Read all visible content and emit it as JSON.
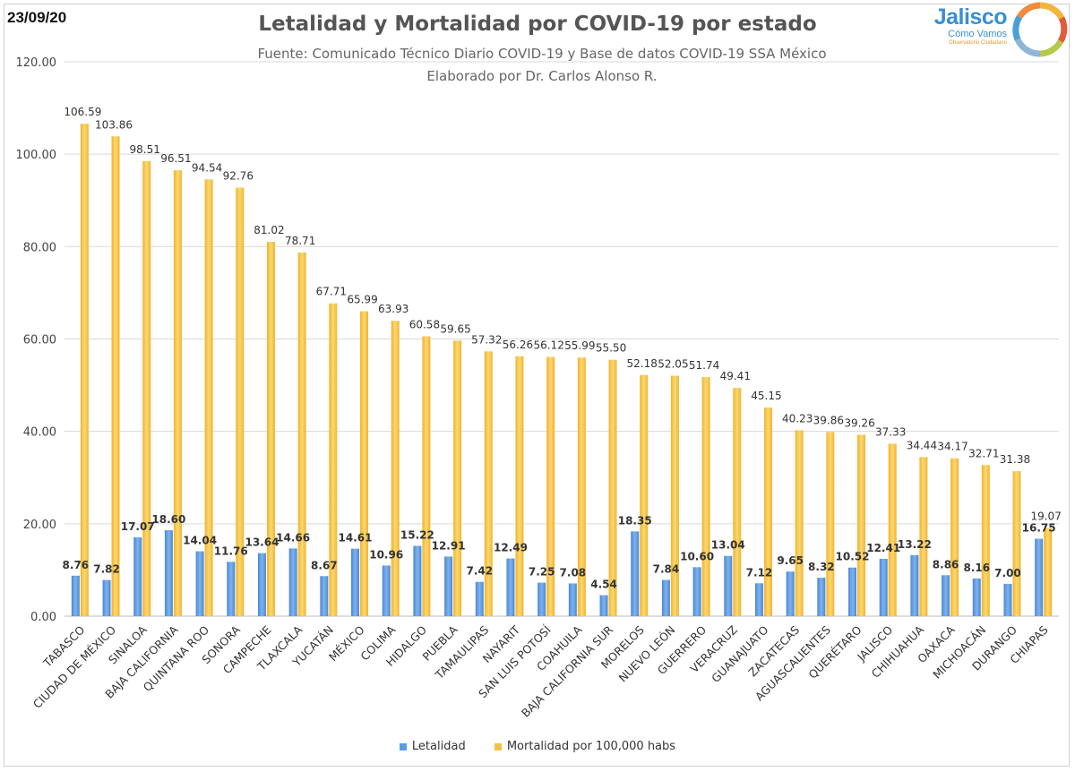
{
  "header": {
    "date": "23/09/20",
    "title": "Letalidad y Mortalidad por COVID-19 por estado",
    "subtitle1": "Fuente: Comunicado Técnico Diario COVID-19 y Base de datos COVID-19 SSA México",
    "subtitle2": "Elaborado por Dr. Carlos Alonso R."
  },
  "logo": {
    "main": "Jalisco",
    "sub": "Cómo Vamos",
    "small": "Observatorio Ciudadano"
  },
  "colors": {
    "letalidad": "#5b9be0",
    "mortalidad": "#f5c148",
    "grid": "#d9d9d9",
    "axis_text": "#444444"
  },
  "chart_data": {
    "type": "bar",
    "title": "Letalidad y Mortalidad por COVID-19 por estado",
    "xlabel": "",
    "ylabel": "",
    "ylim": [
      0,
      120
    ],
    "yticks": [
      "0.00",
      "20.00",
      "40.00",
      "60.00",
      "80.00",
      "100.00",
      "120.00"
    ],
    "grid": true,
    "legend_position": "bottom",
    "categories": [
      "TABASCO",
      "CIUDAD DE MÉXICO",
      "SINALOA",
      "BAJA CALIFORNIA",
      "QUINTANA ROO",
      "SONORA",
      "CAMPECHE",
      "TLAXCALA",
      "YUCATÁN",
      "MÉXICO",
      "COLIMA",
      "HIDALGO",
      "PUEBLA",
      "TAMAULIPAS",
      "NAYARIT",
      "SAN LUIS POTOSÍ",
      "COAHUILA",
      "BAJA CALIFORNIA SUR",
      "MORELOS",
      "NUEVO LEÓN",
      "GUERRERO",
      "VERACRUZ",
      "GUANAJUATO",
      "ZACATECAS",
      "AGUASCALIENTES",
      "QUERÉTARO",
      "JALISCO",
      "CHIHUAHUA",
      "OAXACA",
      "MICHOACÁN",
      "DURANGO",
      "CHIAPAS"
    ],
    "series": [
      {
        "name": "Letalidad",
        "values": [
          8.76,
          7.82,
          17.07,
          18.6,
          14.04,
          11.76,
          13.64,
          14.66,
          8.67,
          14.61,
          10.96,
          15.22,
          12.91,
          7.42,
          12.49,
          7.25,
          7.08,
          4.54,
          18.35,
          7.84,
          10.6,
          13.04,
          7.12,
          9.65,
          8.32,
          10.52,
          12.41,
          13.22,
          8.86,
          8.16,
          7.0,
          16.75
        ],
        "labels": [
          "8.76",
          "7.82",
          "17.07",
          "18.60",
          "14.04",
          "11.76",
          "13.64",
          "14.66",
          "8.67",
          "14.61",
          "10.96",
          "15.22",
          "12.91",
          "7.42",
          "12.49",
          "7.25",
          "7.08",
          "4.54",
          "18.35",
          "7.84",
          "10.60",
          "13.04",
          "7.12",
          "9.65",
          "8.32",
          "10.52",
          "12.41",
          "13.22",
          "8.86",
          "8.16",
          "7.00",
          "16.75"
        ]
      },
      {
        "name": "Mortalidad por 100,000 habs",
        "values": [
          106.59,
          103.86,
          98.51,
          96.51,
          94.54,
          92.76,
          81.02,
          78.71,
          67.71,
          65.99,
          63.93,
          60.58,
          59.65,
          57.32,
          56.26,
          56.12,
          55.99,
          55.5,
          52.18,
          52.05,
          51.74,
          49.41,
          45.15,
          40.23,
          39.86,
          39.26,
          37.33,
          34.44,
          34.17,
          32.71,
          31.38,
          19.07
        ],
        "labels": [
          "106.59",
          "103.86",
          "98.51",
          "96.51",
          "94.54",
          "92.76",
          "81.02",
          "78.71",
          "67.71",
          "65.99",
          "63.93",
          "60.58",
          "59.65",
          "57.32",
          "56.26",
          "56.12",
          "55.99",
          "55.50",
          "52.18",
          "52.05",
          "51.74",
          "49.41",
          "45.15",
          "40.23",
          "39.86",
          "39.26",
          "37.33",
          "34.44",
          "34.17",
          "32.71",
          "31.38",
          "19.07"
        ]
      }
    ]
  }
}
